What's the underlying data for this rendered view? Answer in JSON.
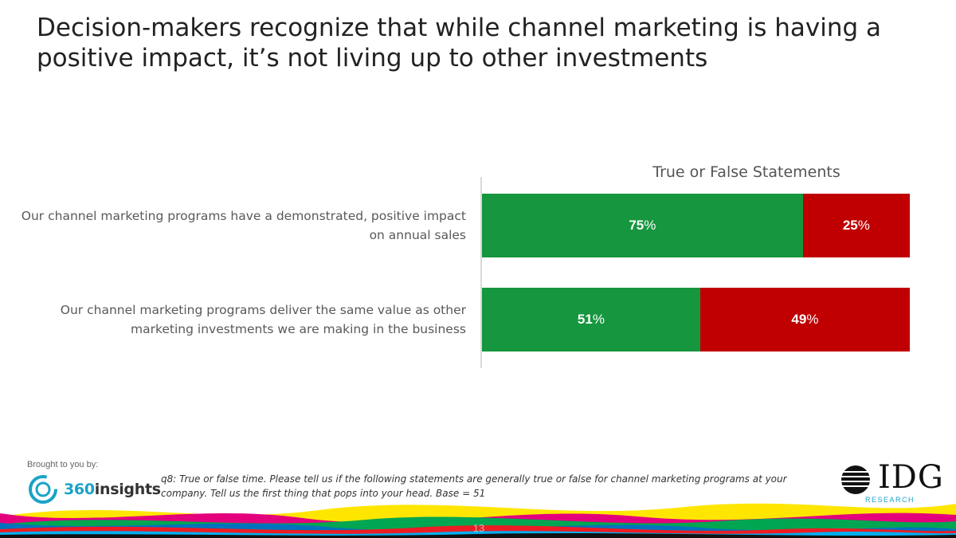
{
  "slide": {
    "title": "Decision-makers recognize that while channel marketing is having a positive impact, it’s not living up to other investments",
    "page_number": "13"
  },
  "chart_data": {
    "type": "bar",
    "orientation": "horizontal",
    "stacked": true,
    "title": "True or False Statements",
    "categories": [
      "Our channel marketing programs have a demonstrated, positive impact on annual sales",
      "Our channel marketing programs deliver the same value as other marketing investments we are making in the business"
    ],
    "series": [
      {
        "values": [
          75,
          51
        ],
        "color": "#16963e"
      },
      {
        "values": [
          25,
          49
        ],
        "color": "#c00000"
      }
    ],
    "data_labels": [
      [
        "75%",
        "25%"
      ],
      [
        "51%",
        "49%"
      ]
    ],
    "xlim": [
      0,
      100
    ],
    "grid": false,
    "legend": "none"
  },
  "footer": {
    "brought_by": "Brought to you by:",
    "sponsor_logo_text": "360insights",
    "sponsor_logo_number": "360",
    "sponsor_logo_word": "insights",
    "footnote": "q8: True or false time. Please tell us if the following statements are generally true or false for channel marketing programs at your company. Tell us the first thing that pops into your head. Base = 51",
    "idg_logo_text": "IDG",
    "idg_research": "RESEARCH",
    "wave_colors": [
      "#ffe600",
      "#e4007c",
      "#00a651",
      "#0072bc",
      "#ed1c24",
      "#00aeef",
      "#111111"
    ]
  }
}
